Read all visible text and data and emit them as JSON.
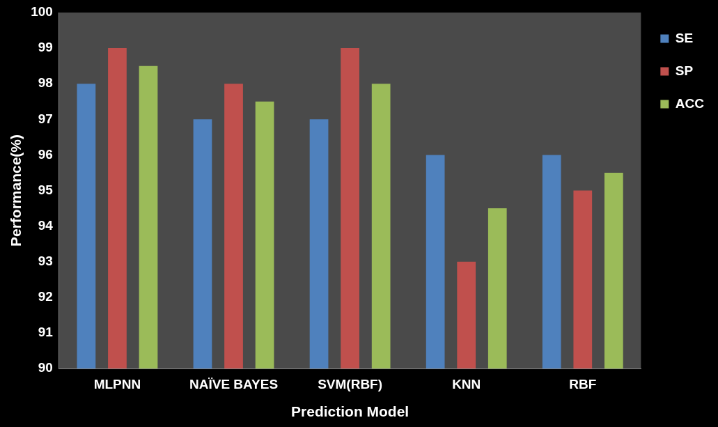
{
  "chart_data": {
    "type": "bar",
    "xlabel": "Prediction Model",
    "ylabel": "Performance(%)",
    "categories": [
      "MLPNN",
      "NAÏVE BAYES",
      "SVM(RBF)",
      "KNN",
      "RBF"
    ],
    "series": [
      {
        "name": "SE",
        "color": "#4f81bd",
        "values": [
          98,
          97,
          97,
          96,
          96
        ]
      },
      {
        "name": "SP",
        "color": "#c0504d",
        "values": [
          99,
          98,
          99,
          93,
          95
        ]
      },
      {
        "name": "ACC",
        "color": "#9bbb59",
        "values": [
          98.5,
          97.5,
          98,
          94.5,
          95.5
        ]
      }
    ],
    "ylim": [
      90,
      100
    ],
    "yticks": [
      90,
      91,
      92,
      93,
      94,
      95,
      96,
      97,
      98,
      99,
      100
    ],
    "grid": false,
    "legend": "right"
  }
}
